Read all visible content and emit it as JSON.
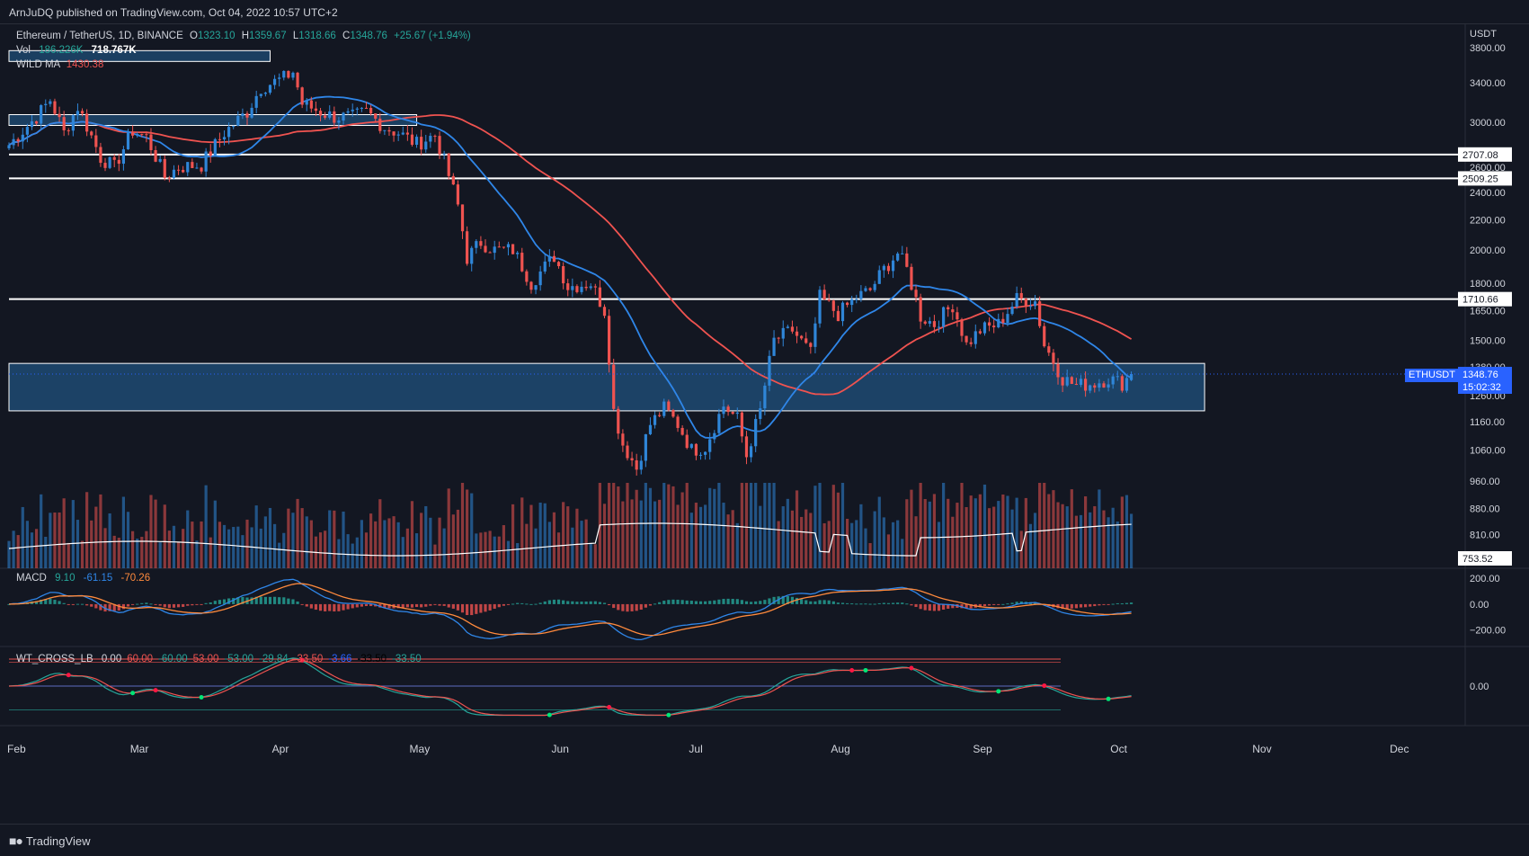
{
  "header": {
    "published_text": "ArnJuDQ published on TradingView.com, Oct 04, 2022 10:57 UTC+2"
  },
  "footer": {
    "brand": "TradingView"
  },
  "legend": {
    "symbol": "Ethereum / TetherUS, 1D, BINANCE",
    "o_label": "O",
    "o": "1323.10",
    "h_label": "H",
    "h": "1359.67",
    "l_label": "L",
    "l": "1318.66",
    "c_label": "C",
    "c": "1348.76",
    "change": "+25.67 (+1.94%)",
    "vol_label": "Vol",
    "vol1": "186.226K",
    "vol2": "718.767K",
    "wild_ma_label": "WILD MA",
    "wild_ma_value": "1430.38"
  },
  "macd_legend": {
    "label": "MACD",
    "v1": "9.10",
    "v2": "-61.15",
    "v3": "-70.26"
  },
  "wt_legend": {
    "label": "WT_CROSS_LB",
    "values": [
      "0.00",
      "60.00",
      "-60.00",
      "53.00",
      "-53.00",
      "-29.84",
      "-33.50",
      "-3.66",
      "-33.50",
      "-33.50"
    ],
    "colors": [
      "#d1d4dc",
      "#ef5350",
      "#26a69a",
      "#ef5350",
      "#26a69a",
      "#26a69a",
      "#ef5350",
      "#2962ff",
      "#000000",
      "#26a69a"
    ]
  },
  "price_axis": {
    "currency": "USDT",
    "ticks": [
      "3800.00",
      "3400.00",
      "3000.00",
      "2600.00",
      "2400.00",
      "2200.00",
      "2000.00",
      "1800.00",
      "1650.00",
      "1500.00",
      "1380.00",
      "1260.00",
      "1160.00",
      "1060.00",
      "960.00",
      "880.00",
      "810.00"
    ],
    "level_labels": [
      "2707.08",
      "2509.25",
      "1710.66",
      "753.52"
    ],
    "current_symbol": "ETHUSDT",
    "current_price": "1348.76",
    "countdown": "15:02:32"
  },
  "macd_axis": {
    "ticks": [
      "200.00",
      "0.00",
      "−200.00"
    ]
  },
  "wt_axis": {
    "ticks": [
      "0.00"
    ]
  },
  "time_axis": {
    "labels": [
      "Feb",
      "Mar",
      "Apr",
      "May",
      "Jun",
      "Jul",
      "Aug",
      "Sep",
      "Oct",
      "Nov",
      "Dec"
    ]
  },
  "colors": {
    "bull": "#2f86d8",
    "bear": "#ef5350",
    "ma_blue": "#2f86e8",
    "ma_red": "#ef5350",
    "zone": "#1e4a72",
    "bg": "#131722"
  },
  "chart_data": {
    "type": "candlestick",
    "symbol": "ETHUSDT",
    "interval": "1D",
    "exchange": "BINANCE",
    "y_scale": "log",
    "ylim": [
      760,
      4000
    ],
    "x_range": [
      "2022-02-01",
      "2022-12-10"
    ],
    "ohlc_last": {
      "o": 1323.1,
      "h": 1359.67,
      "l": 1318.66,
      "c": 1348.76,
      "change": 25.67,
      "change_pct": 1.94
    },
    "horizontal_levels": [
      2707.08,
      2509.25,
      1710.66
    ],
    "zones": [
      {
        "from": "2022-02-01",
        "to": "2022-03-30",
        "price": 3700
      },
      {
        "from": "2022-02-01",
        "to": "2022-05-01",
        "price": 3020
      },
      {
        "from": "2022-02-01",
        "to": "2022-10-20",
        "low": 1200,
        "high": 1395
      }
    ],
    "price_path": [
      [
        "2022-02-01",
        2790
      ],
      [
        "2022-02-07",
        3050
      ],
      [
        "2022-02-10",
        3220
      ],
      [
        "2022-02-13",
        2900
      ],
      [
        "2022-02-16",
        3150
      ],
      [
        "2022-02-21",
        2680
      ],
      [
        "2022-02-24",
        2600
      ],
      [
        "2022-02-28",
        2920
      ],
      [
        "2022-03-03",
        2860
      ],
      [
        "2022-03-07",
        2520
      ],
      [
        "2022-03-10",
        2600
      ],
      [
        "2022-03-15",
        2620
      ],
      [
        "2022-03-20",
        2900
      ],
      [
        "2022-03-25",
        3100
      ],
      [
        "2022-03-28",
        3350
      ],
      [
        "2022-04-02",
        3450
      ],
      [
        "2022-04-04",
        3520
      ],
      [
        "2022-04-06",
        3180
      ],
      [
        "2022-04-10",
        3100
      ],
      [
        "2022-04-13",
        3050
      ],
      [
        "2022-04-17",
        3050
      ],
      [
        "2022-04-20",
        3100
      ],
      [
        "2022-04-24",
        2950
      ],
      [
        "2022-04-27",
        2900
      ],
      [
        "2022-05-01",
        2800
      ],
      [
        "2022-05-05",
        2880
      ],
      [
        "2022-05-07",
        2650
      ],
      [
        "2022-05-10",
        2300
      ],
      [
        "2022-05-12",
        1950
      ],
      [
        "2022-05-15",
        2050
      ],
      [
        "2022-05-18",
        2000
      ],
      [
        "2022-05-22",
        2000
      ],
      [
        "2022-05-26",
        1800
      ],
      [
        "2022-05-31",
        1960
      ],
      [
        "2022-06-03",
        1780
      ],
      [
        "2022-06-08",
        1800
      ],
      [
        "2022-06-11",
        1650
      ],
      [
        "2022-06-13",
        1200
      ],
      [
        "2022-06-15",
        1080
      ],
      [
        "2022-06-18",
        1000
      ],
      [
        "2022-06-21",
        1150
      ],
      [
        "2022-06-24",
        1210
      ],
      [
        "2022-06-27",
        1150
      ],
      [
        "2022-06-30",
        1060
      ],
      [
        "2022-07-03",
        1070
      ],
      [
        "2022-07-07",
        1220
      ],
      [
        "2022-07-10",
        1170
      ],
      [
        "2022-07-12",
        1040
      ],
      [
        "2022-07-15",
        1200
      ],
      [
        "2022-07-18",
        1500
      ],
      [
        "2022-07-22",
        1550
      ],
      [
        "2022-07-26",
        1440
      ],
      [
        "2022-07-28",
        1720
      ],
      [
        "2022-08-01",
        1630
      ],
      [
        "2022-08-05",
        1720
      ],
      [
        "2022-08-08",
        1760
      ],
      [
        "2022-08-11",
        1880
      ],
      [
        "2022-08-14",
        1980
      ],
      [
        "2022-08-16",
        1880
      ],
      [
        "2022-08-19",
        1620
      ],
      [
        "2022-08-22",
        1580
      ],
      [
        "2022-08-26",
        1680
      ],
      [
        "2022-08-29",
        1480
      ],
      [
        "2022-09-01",
        1550
      ],
      [
        "2022-09-05",
        1580
      ],
      [
        "2022-09-09",
        1710
      ],
      [
        "2022-09-13",
        1700
      ],
      [
        "2022-09-15",
        1480
      ],
      [
        "2022-09-19",
        1330
      ],
      [
        "2022-09-22",
        1300
      ],
      [
        "2022-09-26",
        1310
      ],
      [
        "2022-09-29",
        1330
      ],
      [
        "2022-10-02",
        1310
      ],
      [
        "2022-10-04",
        1348.76
      ]
    ],
    "series": [
      {
        "name": "WILD MA",
        "last": 1430.38
      }
    ],
    "volume": {
      "label": "Vol",
      "last": "186.226K",
      "ma": "718.767K",
      "axis_label": "753.52"
    },
    "macd": {
      "macd": 9.1,
      "signal": -61.15,
      "hist": -70.26,
      "ylim": [
        -300,
        250
      ]
    },
    "wt_cross": {
      "values": [
        0.0,
        60.0,
        -60.0,
        53.0,
        -53.0,
        -29.84,
        -33.5,
        -3.66,
        -33.5,
        -33.5
      ]
    }
  }
}
